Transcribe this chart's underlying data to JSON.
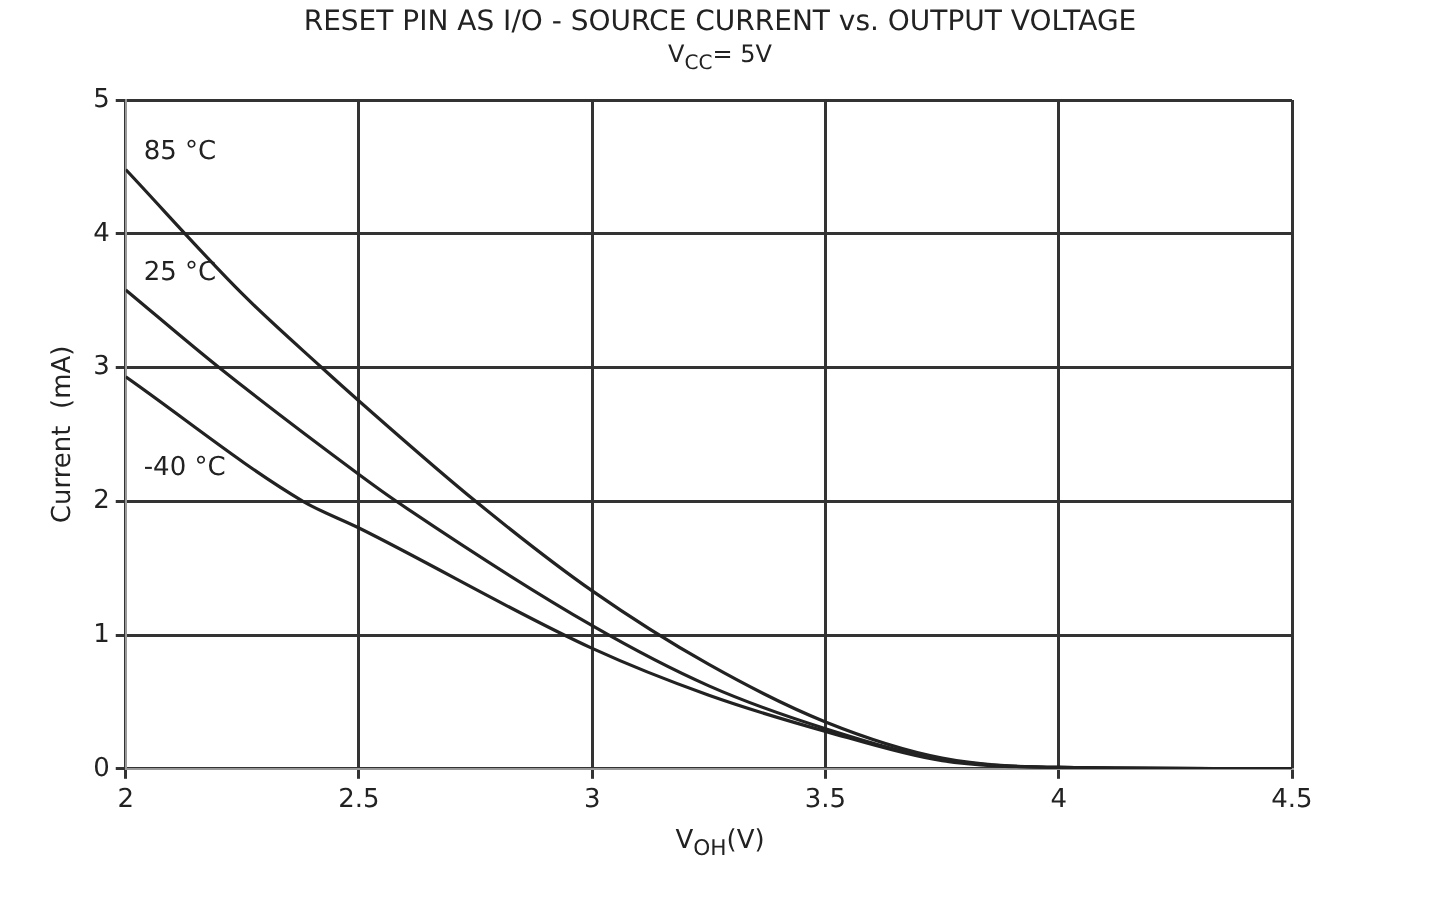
{
  "chart_data": {
    "type": "line",
    "title": "RESET PIN AS I/O -  SOURCE CURRENT vs. OUTPUT VOLTAGE",
    "subtitle": "V$_{CC}$= 5V",
    "xlabel": "V$_{OH}$(V)",
    "ylabel": "Current  (mA)",
    "xlim": [
      2,
      4.5
    ],
    "xticks": [
      2,
      2.5,
      3,
      3.5,
      4,
      4.5
    ],
    "ylim": [
      0,
      5
    ],
    "yticks": [
      0,
      1,
      2,
      3,
      4,
      5
    ],
    "grid": true,
    "legend": false,
    "marker": "none",
    "line_style": "solid",
    "series": [
      {
        "name": "85 °C",
        "color": "#222222",
        "x": [
          2,
          2.25,
          2.42,
          2.5,
          2.75,
          3,
          3.25,
          3.5,
          3.75,
          4,
          4.5
        ],
        "values": [
          4.48,
          3.55,
          3,
          2.75,
          2,
          1.33,
          0.78,
          0.35,
          0.08,
          0.01,
          0
        ]
      },
      {
        "name": "25 °C",
        "color": "#222222",
        "x": [
          2,
          2.2,
          2.5,
          2.58,
          3,
          3.25,
          3.5,
          3.75,
          4,
          4.5
        ],
        "values": [
          3.58,
          3,
          2.2,
          2,
          1.07,
          0.62,
          0.3,
          0.07,
          0.01,
          0
        ]
      },
      {
        "name": "-40 °C",
        "color": "#222222",
        "x": [
          2,
          2.38,
          2.5,
          3,
          3.25,
          3.5,
          3.75,
          4,
          4.5
        ],
        "values": [
          2.93,
          2,
          1.8,
          0.9,
          0.55,
          0.28,
          0.06,
          0.01,
          0
        ]
      }
    ]
  }
}
